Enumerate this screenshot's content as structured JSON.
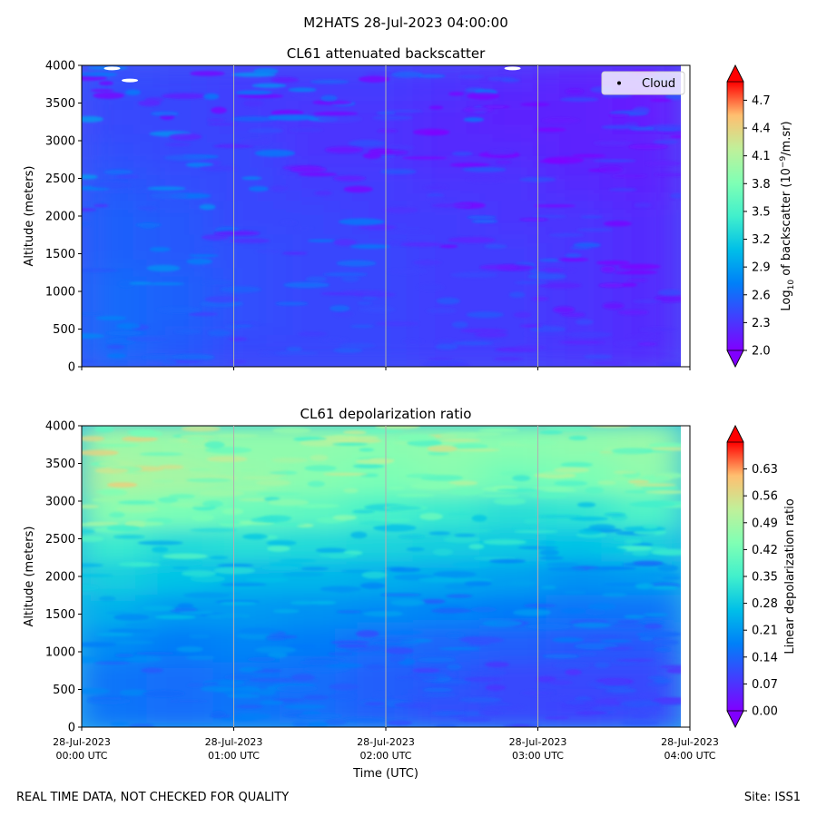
{
  "figure": {
    "suptitle": "M2HATS 28-Jul-2023 04:00:00",
    "footer_left": "REAL TIME DATA, NOT CHECKED FOR QUALITY",
    "footer_right": "Site: ISS1"
  },
  "colors": {
    "background": "#ffffff",
    "grid": "#b0b0b0",
    "colormap": "rainbow",
    "cloud_marker": "#ffffff"
  },
  "chart_data": [
    {
      "type": "heatmap",
      "title": "CL61 attenuated backscatter",
      "ylabel": "Altitude (meters)",
      "ylim": [
        0,
        4000
      ],
      "y_ticks": [
        "0",
        "500",
        "1000",
        "1500",
        "2000",
        "2500",
        "3000",
        "3500",
        "4000"
      ],
      "x_ticks": [],
      "grid": true,
      "colorbar": {
        "label_prefix": "Log",
        "label_sub": "10",
        "label_mid": " of backscatter (10",
        "label_sup": "−9",
        "label_suffix": "/m.sr)",
        "range": [
          2.0,
          4.9
        ],
        "ticks": [
          "2.0",
          "2.3",
          "2.6",
          "2.9",
          "3.2",
          "3.5",
          "3.8",
          "4.1",
          "4.4",
          "4.7"
        ],
        "extend": "both"
      },
      "legend": {
        "label": "Cloud",
        "placement": "upper right"
      },
      "cloud_points": [
        {
          "time": "00:12 UTC",
          "altitude": 3960
        },
        {
          "time": "00:19 UTC",
          "altitude": 3800
        },
        {
          "time": "02:50 UTC",
          "altitude": 3960
        }
      ],
      "profile": {
        "time_utc": [
          "00:00",
          "00:30",
          "01:00",
          "01:30",
          "02:00",
          "02:30",
          "03:00",
          "03:30",
          "04:00"
        ],
        "altitude_m": [
          0,
          500,
          1000,
          1500,
          2000,
          2500,
          3000,
          3500,
          4000
        ],
        "approx_values": [
          [
            2.6,
            2.5,
            2.4,
            2.4,
            2.4,
            2.35,
            2.35,
            2.3,
            2.25
          ],
          [
            2.6,
            2.55,
            2.45,
            2.4,
            2.4,
            2.35,
            2.35,
            2.3,
            2.25
          ],
          [
            2.6,
            2.55,
            2.45,
            2.4,
            2.4,
            2.35,
            2.35,
            2.3,
            2.25
          ],
          [
            2.55,
            2.5,
            2.45,
            2.4,
            2.4,
            2.35,
            2.35,
            2.3,
            2.25
          ],
          [
            2.55,
            2.5,
            2.4,
            2.4,
            2.35,
            2.35,
            2.3,
            2.3,
            2.25
          ],
          [
            2.5,
            2.45,
            2.4,
            2.35,
            2.35,
            2.3,
            2.3,
            2.25,
            2.2
          ],
          [
            2.45,
            2.4,
            2.4,
            2.3,
            2.3,
            2.25,
            2.25,
            2.2,
            2.2
          ],
          [
            2.4,
            2.4,
            2.35,
            2.3,
            2.3,
            2.25,
            2.2,
            2.2,
            2.15
          ],
          [
            2.45,
            2.4,
            2.35,
            2.35,
            2.35,
            2.3,
            2.25,
            2.2,
            2.15
          ]
        ]
      }
    },
    {
      "type": "heatmap",
      "title": "CL61 depolarization ratio",
      "ylabel": "Altitude (meters)",
      "xlabel": "Time (UTC)",
      "ylim": [
        0,
        4000
      ],
      "y_ticks": [
        "0",
        "500",
        "1000",
        "1500",
        "2000",
        "2500",
        "3000",
        "3500",
        "4000"
      ],
      "x_ticks": [
        [
          "28-Jul-2023",
          "00:00 UTC"
        ],
        [
          "28-Jul-2023",
          "01:00 UTC"
        ],
        [
          "28-Jul-2023",
          "02:00 UTC"
        ],
        [
          "28-Jul-2023",
          "03:00 UTC"
        ],
        [
          "28-Jul-2023",
          "04:00 UTC"
        ]
      ],
      "grid": true,
      "colorbar": {
        "label": "Linear depolarization ratio",
        "range": [
          0.0,
          0.7
        ],
        "ticks": [
          "0.00",
          "0.07",
          "0.14",
          "0.21",
          "0.28",
          "0.35",
          "0.42",
          "0.49",
          "0.56",
          "0.63"
        ],
        "extend": "both"
      },
      "profile": {
        "time_utc": [
          "00:00",
          "00:30",
          "01:00",
          "01:30",
          "02:00",
          "02:30",
          "03:00",
          "03:30",
          "04:00"
        ],
        "altitude_m": [
          0,
          500,
          1000,
          1500,
          2000,
          2500,
          3000,
          3500,
          4000
        ],
        "approx_values": [
          [
            0.16,
            0.15,
            0.16,
            0.15,
            0.13,
            0.11,
            0.1,
            0.09,
            0.1
          ],
          [
            0.16,
            0.15,
            0.16,
            0.15,
            0.13,
            0.12,
            0.1,
            0.1,
            0.1
          ],
          [
            0.19,
            0.17,
            0.18,
            0.17,
            0.15,
            0.14,
            0.13,
            0.12,
            0.12
          ],
          [
            0.24,
            0.21,
            0.21,
            0.2,
            0.19,
            0.18,
            0.17,
            0.16,
            0.16
          ],
          [
            0.29,
            0.27,
            0.25,
            0.25,
            0.24,
            0.23,
            0.22,
            0.2,
            0.21
          ],
          [
            0.34,
            0.31,
            0.32,
            0.31,
            0.3,
            0.29,
            0.28,
            0.27,
            0.29
          ],
          [
            0.45,
            0.43,
            0.41,
            0.39,
            0.36,
            0.34,
            0.32,
            0.33,
            0.37
          ],
          [
            0.5,
            0.49,
            0.47,
            0.45,
            0.43,
            0.45,
            0.42,
            0.43,
            0.46
          ],
          [
            0.48,
            0.47,
            0.46,
            0.46,
            0.45,
            0.46,
            0.45,
            0.46,
            0.47
          ]
        ]
      }
    }
  ]
}
